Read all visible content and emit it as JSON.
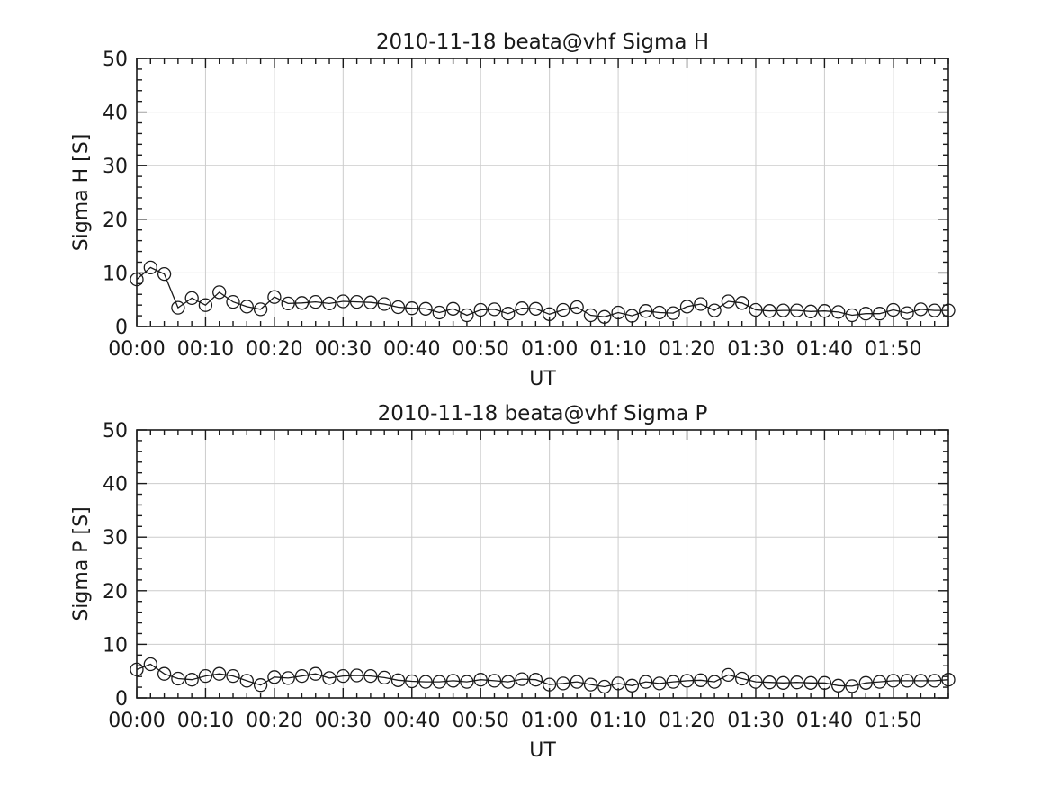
{
  "figure": {
    "bg_color": "#ffffff",
    "axis_color": "#1a1a1a",
    "text_color": "#1a1a1a",
    "grid_color": "#cccccc",
    "line_color": "#1a1a1a"
  },
  "chart_data": [
    {
      "type": "line",
      "title": "2010-11-18  beata@vhf Sigma H",
      "xlabel": "UT",
      "ylabel": "Sigma H [S]",
      "marker": "open-circle",
      "grid": true,
      "legend": "none",
      "ylim": [
        0,
        50
      ],
      "yticks": [
        0,
        10,
        20,
        30,
        40,
        50
      ],
      "y_minor_step": 2,
      "xlim_minutes": [
        0,
        118
      ],
      "x_minor_step_minutes": 2,
      "xtick_minutes": [
        0,
        10,
        20,
        30,
        40,
        50,
        60,
        70,
        80,
        90,
        100,
        110
      ],
      "xtick_labels": [
        "00:00",
        "00:10",
        "00:20",
        "00:30",
        "00:40",
        "00:50",
        "01:00",
        "01:10",
        "01:20",
        "01:30",
        "01:40",
        "01:50"
      ],
      "x_minutes": [
        0,
        2,
        4,
        6,
        8,
        10,
        12,
        14,
        16,
        18,
        20,
        22,
        24,
        26,
        28,
        30,
        32,
        34,
        36,
        38,
        40,
        42,
        44,
        46,
        48,
        50,
        52,
        54,
        56,
        58,
        60,
        62,
        64,
        66,
        68,
        70,
        72,
        74,
        76,
        78,
        80,
        82,
        84,
        86,
        88,
        90,
        92,
        94,
        96,
        98,
        100,
        102,
        104,
        106,
        108,
        110,
        112,
        114,
        116,
        118
      ],
      "values": [
        8.8,
        11.0,
        9.8,
        3.5,
        5.3,
        4.0,
        6.4,
        4.6,
        3.7,
        3.2,
        5.5,
        4.3,
        4.4,
        4.6,
        4.3,
        4.7,
        4.6,
        4.5,
        4.2,
        3.6,
        3.4,
        3.3,
        2.6,
        3.3,
        2.1,
        3.1,
        3.2,
        2.4,
        3.4,
        3.3,
        2.3,
        3.1,
        3.6,
        2.1,
        1.8,
        2.6,
        2.0,
        2.9,
        2.6,
        2.5,
        3.7,
        4.2,
        3.0,
        4.7,
        4.4,
        3.1,
        2.9,
        3.0,
        3.0,
        2.8,
        2.9,
        2.7,
        2.1,
        2.4,
        2.4,
        3.1,
        2.5,
        3.2,
        3.0,
        3.0
      ]
    },
    {
      "type": "line",
      "title": "2010-11-18  beata@vhf Sigma P",
      "xlabel": "UT",
      "ylabel": "Sigma P [S]",
      "marker": "open-circle",
      "grid": true,
      "legend": "none",
      "ylim": [
        0,
        50
      ],
      "yticks": [
        0,
        10,
        20,
        30,
        40,
        50
      ],
      "y_minor_step": 2,
      "xlim_minutes": [
        0,
        118
      ],
      "x_minor_step_minutes": 2,
      "xtick_minutes": [
        0,
        10,
        20,
        30,
        40,
        50,
        60,
        70,
        80,
        90,
        100,
        110
      ],
      "xtick_labels": [
        "00:00",
        "00:10",
        "00:20",
        "00:30",
        "00:40",
        "00:50",
        "01:00",
        "01:10",
        "01:20",
        "01:30",
        "01:40",
        "01:50"
      ],
      "x_minutes": [
        0,
        2,
        4,
        6,
        8,
        10,
        12,
        14,
        16,
        18,
        20,
        22,
        24,
        26,
        28,
        30,
        32,
        34,
        36,
        38,
        40,
        42,
        44,
        46,
        48,
        50,
        52,
        54,
        56,
        58,
        60,
        62,
        64,
        66,
        68,
        70,
        72,
        74,
        76,
        78,
        80,
        82,
        84,
        86,
        88,
        90,
        92,
        94,
        96,
        98,
        100,
        102,
        104,
        106,
        108,
        110,
        112,
        114,
        116,
        118
      ],
      "values": [
        5.3,
        6.3,
        4.5,
        3.6,
        3.4,
        4.1,
        4.5,
        4.1,
        3.2,
        2.4,
        3.9,
        3.7,
        4.1,
        4.5,
        3.7,
        4.1,
        4.2,
        4.1,
        3.8,
        3.3,
        3.1,
        3.0,
        3.0,
        3.2,
        3.0,
        3.4,
        3.2,
        3.0,
        3.5,
        3.4,
        2.5,
        2.7,
        3.0,
        2.5,
        2.1,
        2.7,
        2.3,
        3.0,
        2.7,
        3.0,
        3.2,
        3.3,
        3.0,
        4.3,
        3.6,
        3.0,
        2.9,
        2.8,
        2.9,
        2.8,
        2.8,
        2.3,
        2.2,
        2.8,
        3.0,
        3.2,
        3.2,
        3.2,
        3.2,
        3.4
      ]
    }
  ]
}
